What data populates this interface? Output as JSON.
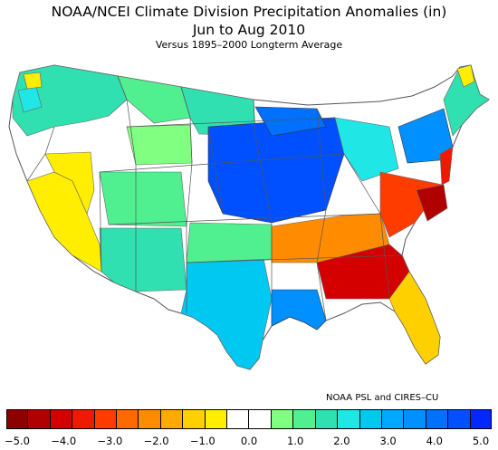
{
  "title": "NOAA/NCEI Climate Division Precipitation Anomalies (in)",
  "subtitle": "Jun to Aug 2010",
  "subtitle2": "Versus 1895–2000 Longterm Average",
  "credit": "NOAA PSL and CIRES–CU",
  "legend": {
    "colors": [
      "#8c0000",
      "#b00000",
      "#d40000",
      "#ee1a00",
      "#ff3c00",
      "#ff6a00",
      "#ff8c00",
      "#ffaa00",
      "#ffd000",
      "#ffee00",
      "#ffffff",
      "#ffffff",
      "#80ff80",
      "#50f090",
      "#30e0b0",
      "#20e6e6",
      "#00c8f0",
      "#00a8ff",
      "#0090ff",
      "#0070ff",
      "#0050ff",
      "#0028ff"
    ],
    "ticks": [
      "−5.0",
      "−4.0",
      "−3.0",
      "−2.0",
      "−1.0",
      "0.0",
      "1.0",
      "2.0",
      "3.0",
      "4.0",
      "5.0"
    ]
  }
}
